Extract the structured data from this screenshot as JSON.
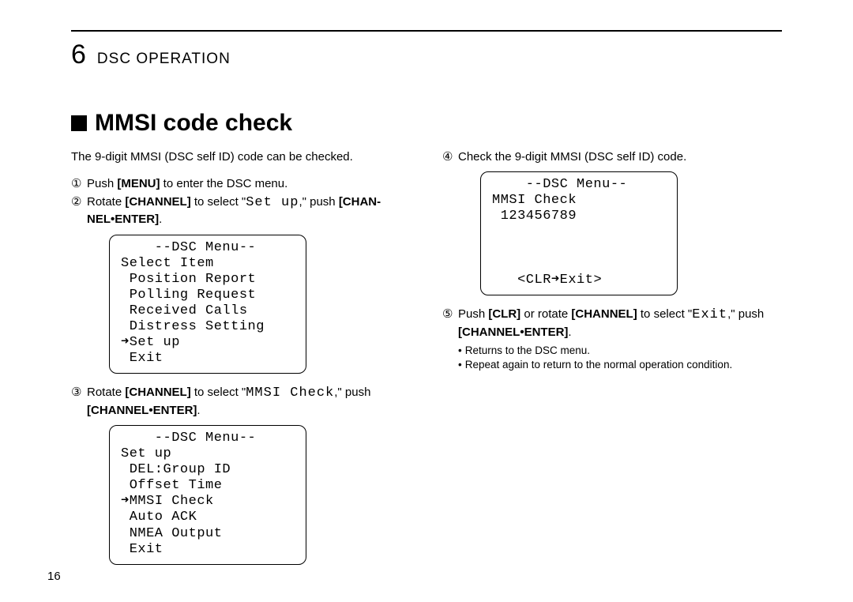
{
  "chapter": {
    "number": "6",
    "title": "DSC OPERATION"
  },
  "section": {
    "marker": "■",
    "title": "MMSI code check"
  },
  "left": {
    "intro": "The 9-digit MMSI (DSC self ID) code can be checked.",
    "step1": {
      "marker": "①",
      "p1": "Push ",
      "menu": "[MENU]",
      "p2": " to enter the DSC menu."
    },
    "step2": {
      "marker": "②",
      "p1": "Rotate ",
      "channel": "[CHANNEL]",
      "p2": " to select \"",
      "setup": "Set up",
      "p3": ",\" push ",
      "chan": "[CHAN-",
      "nelenter": "NEL•ENTER]",
      "p4": "."
    },
    "screen1": "    --DSC Menu--\nSelect Item\n Position Report\n Polling Request\n Received Calls\n Distress Setting\n➜Set up\n Exit",
    "step3": {
      "marker": "③",
      "p1": "Rotate ",
      "channel": "[CHANNEL]",
      "p2": " to select \"",
      "mmsi": "MMSI Check",
      "p3": ",\" push ",
      "chenter": "[CHANNEL•ENTER]",
      "p4": "."
    },
    "screen2": "    --DSC Menu--\nSet up\n DEL:Group ID\n Offset Time\n➜MMSI Check\n Auto ACK\n NMEA Output\n Exit"
  },
  "right": {
    "step4": {
      "marker": "④",
      "p1": "Check the 9-digit MMSI (DSC self ID) code."
    },
    "screen3": "    --DSC Menu--\nMMSI Check\n 123456789\n\n\n\n   <CLR➜Exit>",
    "step5": {
      "marker": "⑤",
      "p1": "Push ",
      "clr": "[CLR]",
      "p2": " or rotate ",
      "channel": "[CHANNEL]",
      "p3": " to select \"",
      "exit": "Exit",
      "p4": ",\" push ",
      "chenter": "[CHANNEL•ENTER]",
      "p5": "."
    },
    "bul1": "Returns to the DSC menu.",
    "bul2": "Repeat again to return to the normal operation condition."
  },
  "page": "16"
}
